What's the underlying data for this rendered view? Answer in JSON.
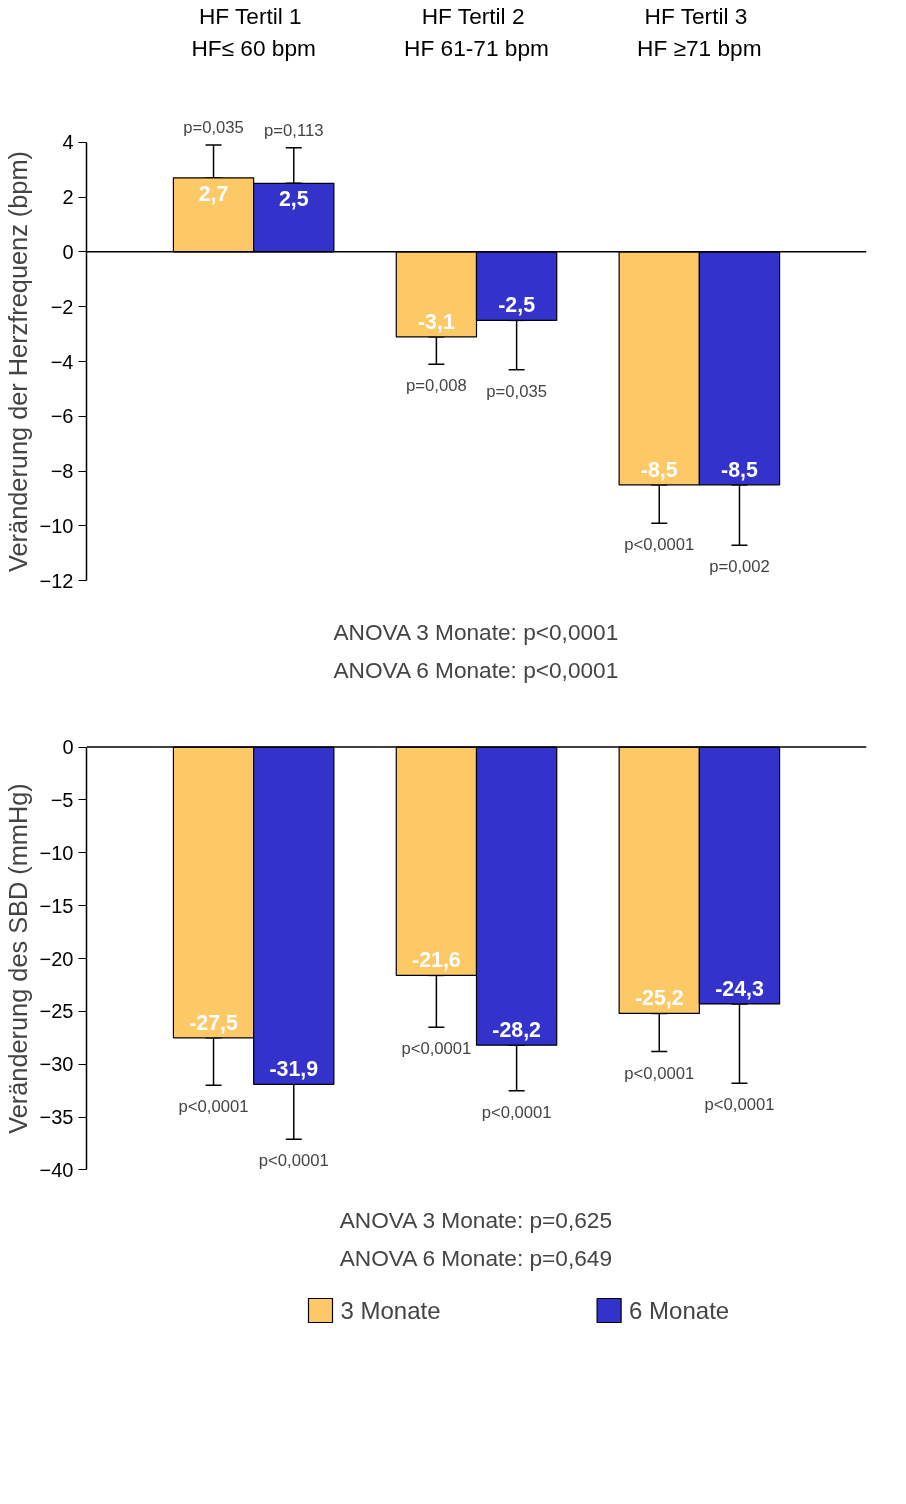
{
  "chart_data": [
    {
      "type": "bar",
      "categories": [
        "HF Tertil  1\nHF≤ 60 bpm",
        "HF Tertil  2\nHF 61-71 bpm",
        "HF Tertil  3\nHF ≥71 bpm"
      ],
      "ylabel": "Veränderung der Herzfrequenz (bpm)",
      "ylim": [
        -12,
        4
      ],
      "yticks": [
        -12,
        -10,
        -8,
        -6,
        -4,
        -2,
        0,
        2,
        4
      ],
      "series": [
        {
          "color": "#fdc967",
          "values": [
            2.7,
            -3.1,
            -8.5
          ],
          "value_labels": [
            "2,7",
            "-3,1",
            "-8,5"
          ],
          "errors": [
            [
              2.7,
              3.9
            ],
            [
              -4.1,
              -3.1
            ],
            [
              -9.9,
              -8.5
            ]
          ]
        },
        {
          "color": "#3333cc",
          "values": [
            2.5,
            -2.5,
            -8.5
          ],
          "value_labels": [
            "2,5",
            "-2,5",
            "-8,5"
          ],
          "errors": [
            [
              2.5,
              3.8
            ],
            [
              -4.3,
              -2.5
            ],
            [
              -10.7,
              -8.5
            ]
          ]
        }
      ],
      "annotations": [
        "p=0,035",
        "p=0,113",
        "p=0,008",
        "p=0,035",
        "p<0,0001",
        "p=0,002",
        "ANOVA 3 Monate: p<0,0001",
        "ANOVA 6 Monate: p<0,0001"
      ]
    },
    {
      "type": "bar",
      "categories": [
        null,
        null,
        null
      ],
      "ylabel": "Veränderung des SBD (mmHg)",
      "ylim": [
        -40,
        0
      ],
      "yticks": [
        -40,
        -35,
        -30,
        -25,
        -20,
        -15,
        -10,
        -5,
        0
      ],
      "legend": "bottom",
      "series": [
        {
          "name": "3 Monate",
          "color": "#fdc967",
          "values": [
            -27.5,
            -21.6,
            -25.2
          ],
          "value_labels": [
            "-27,5",
            "-21,6",
            "-25,2"
          ],
          "errors": [
            [
              -32,
              -27.5
            ],
            [
              -26.5,
              -21.6
            ],
            [
              -28.8,
              -25.2
            ]
          ]
        },
        {
          "name": "6 Monate",
          "color": "#3333cc",
          "values": [
            -31.9,
            -28.2,
            -24.3
          ],
          "value_labels": [
            "-31,9",
            "-28,2",
            "-24,3"
          ],
          "errors": [
            [
              -37.1,
              -31.9
            ],
            [
              -32.5,
              -28.2
            ],
            [
              -31.8,
              -24.3
            ]
          ]
        }
      ],
      "annotations": [
        "p<0,0001",
        "p<0,0001",
        "p<0,0001",
        "p<0,0001",
        "p<0,0001",
        "p<0,0001",
        "ANOVA 3 Monate: p=0,625",
        "ANOVA 6 Monate: p=0,649"
      ]
    }
  ]
}
